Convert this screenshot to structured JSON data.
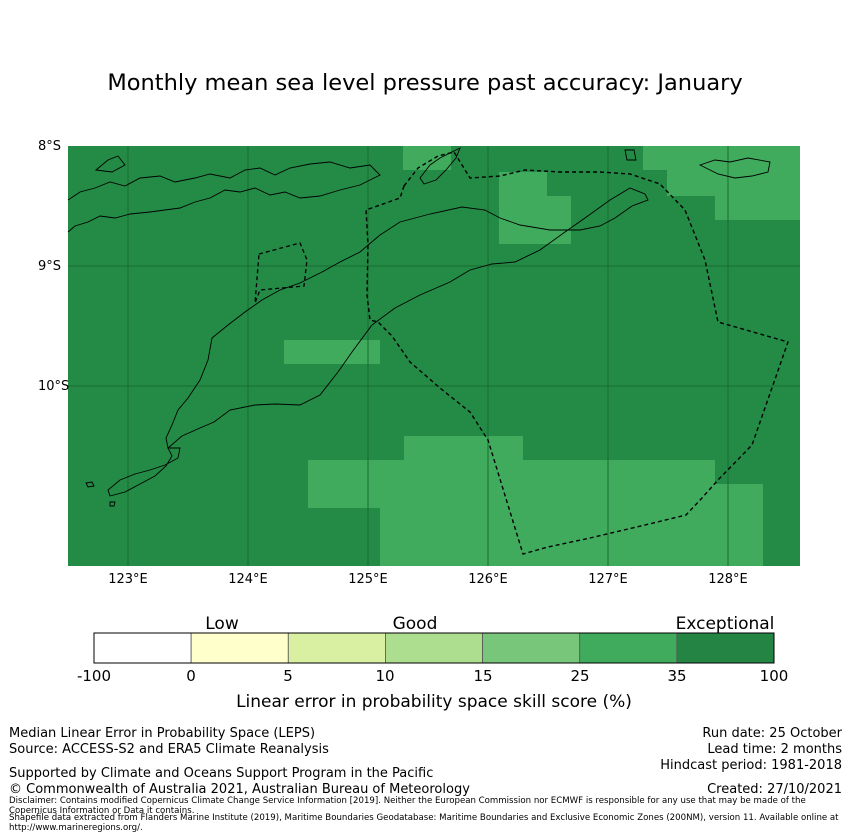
{
  "title": "Monthly mean sea level pressure past accuracy: January",
  "map": {
    "lat_labels": [
      "8°S",
      "9°S",
      "10°S"
    ],
    "lon_labels": [
      "123°E",
      "124°E",
      "125°E",
      "126°E",
      "127°E",
      "128°E"
    ],
    "base_color": "#238b45",
    "cell_color": "#41ab5d",
    "lon_range": [
      122.5,
      128.6
    ],
    "lat_range": [
      -11.5,
      -8.0
    ]
  },
  "colorbar": {
    "categories": [
      {
        "label": "Low",
        "value": 2.5
      },
      {
        "label": "Good",
        "value": 10
      },
      {
        "label": "Exceptional",
        "value": 30
      }
    ],
    "ticks": [
      "-100",
      "0",
      "5",
      "10",
      "15",
      "25",
      "35",
      "100"
    ],
    "colors": [
      "#ffffff",
      "#ffffcc",
      "#d9f0a3",
      "#addd8e",
      "#78c679",
      "#41ab5d",
      "#238443"
    ],
    "label": "Linear error in probability space skill score (%)"
  },
  "footer": {
    "metric": "Median Linear Error in Probability Space (LEPS)",
    "source": "Source: ACCESS-S2 and ERA5 Climate Reanalysis",
    "support": "Supported by Climate and Oceans Support Program in the Pacific",
    "copyright": "© Commonwealth of Australia 2021, Australian Bureau of Meteorology",
    "run_date": "Run date: 25 October",
    "lead_time": "Lead time: 2 months",
    "hindcast": "Hindcast period: 1981-2018",
    "created": "Created: 27/10/2021",
    "disclaimer": "Disclaimer: Contains modified Copernicus Climate Change Service Information [2019]. Neither the European Commission nor ECMWF is responsible for any use that may be made of the Copernicus Information or Data it contains.",
    "shapefile": "Shapefile data extracted from Flanders Marine Institute (2019), Maritime Boundaries Geodatabase: Maritime Boundaries and Exclusive Economic Zones (200NM), version 11. Available online at http://www.marineregions.org/."
  }
}
